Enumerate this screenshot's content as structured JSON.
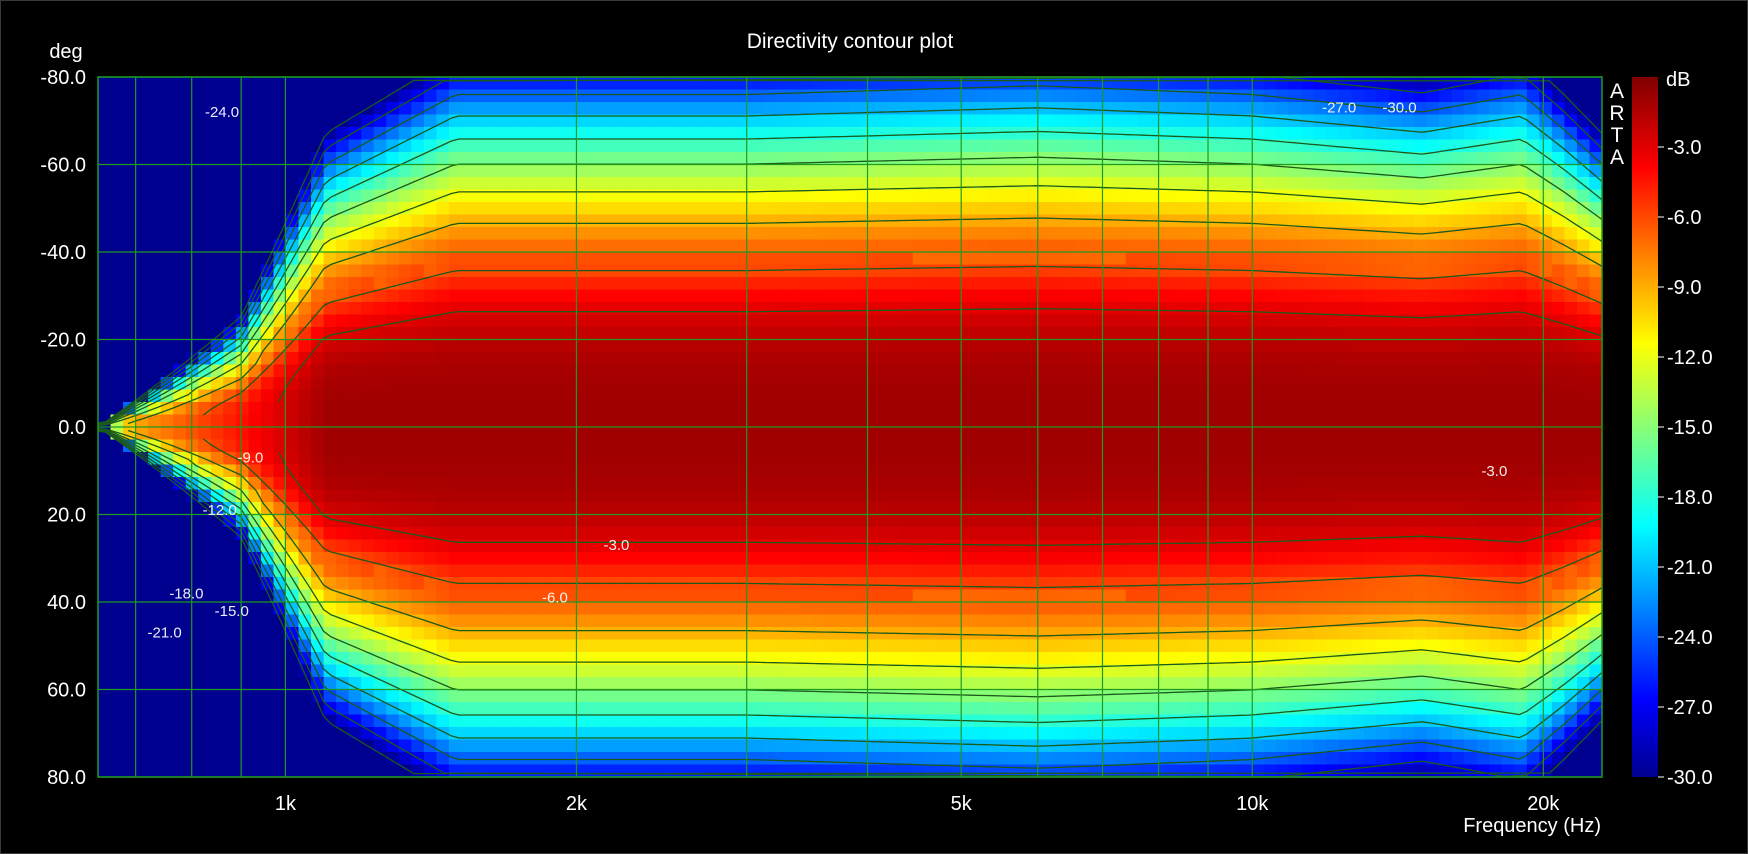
{
  "chart_data": {
    "type": "heatmap",
    "title": "Directivity contour plot",
    "xlabel": "Frequency (Hz)",
    "ylabel": "deg",
    "x_scale": "log",
    "xlim": [
      640,
      23000
    ],
    "ylim": [
      -80,
      80
    ],
    "x_ticks": [
      1000,
      2000,
      5000,
      10000,
      20000
    ],
    "x_tick_labels": [
      "1k",
      "2k",
      "5k",
      "10k",
      "20k"
    ],
    "x_minor_gridlines": [
      700,
      800,
      900,
      3000,
      4000,
      6000,
      7000,
      8000,
      9000
    ],
    "y_ticks": [
      -80,
      -60,
      -40,
      -20,
      0,
      20,
      40,
      60,
      80
    ],
    "y_tick_labels": [
      "-80.0",
      "-60.0",
      "-40.0",
      "-20.0",
      "0.0",
      "20.0",
      "40.0",
      "60.0",
      "80.0"
    ],
    "colorbar": {
      "label": "dB",
      "range": [
        -30,
        0
      ],
      "ticks": [
        -3,
        -6,
        -9,
        -12,
        -15,
        -18,
        -21,
        -24,
        -27,
        -30
      ],
      "tick_labels": [
        "-3.0",
        "-6.0",
        "-9.0",
        "-12.0",
        "-15.0",
        "-18.0",
        "-21.0",
        "-24.0",
        "-27.0",
        "-30.0"
      ],
      "colormap": "jet"
    },
    "contour_levels": [
      -3,
      -6,
      -9,
      -12,
      -15,
      -18,
      -21,
      -24,
      -27,
      -30
    ],
    "contour_labels": [
      {
        "text": "-24.0",
        "x": 860,
        "y": -72
      },
      {
        "text": "-27.0",
        "x": 12300,
        "y": -73
      },
      {
        "text": "-30.0",
        "x": 14200,
        "y": -73
      },
      {
        "text": "-3.0",
        "x": 17800,
        "y": 10
      },
      {
        "text": "-9.0",
        "x": 920,
        "y": 7
      },
      {
        "text": "-12.0",
        "x": 855,
        "y": 19
      },
      {
        "text": "-3.0",
        "x": 2200,
        "y": 27
      },
      {
        "text": "-6.0",
        "x": 1900,
        "y": 39
      },
      {
        "text": "-18.0",
        "x": 790,
        "y": 38
      },
      {
        "text": "-15.0",
        "x": 880,
        "y": 42
      },
      {
        "text": "-21.0",
        "x": 750,
        "y": 47
      }
    ],
    "beamwidth_minus6dB_deg": [
      {
        "x": 640,
        "half_width": 0
      },
      {
        "x": 900,
        "half_width": 12
      },
      {
        "x": 1100,
        "half_width": 30
      },
      {
        "x": 1500,
        "half_width": 38
      },
      {
        "x": 3000,
        "half_width": 38
      },
      {
        "x": 6000,
        "half_width": 39
      },
      {
        "x": 10000,
        "half_width": 38
      },
      {
        "x": 15000,
        "half_width": 36
      },
      {
        "x": 19000,
        "half_width": 38
      },
      {
        "x": 21000,
        "half_width": 34
      },
      {
        "x": 23000,
        "half_width": 30
      }
    ],
    "brand_text": [
      "A",
      "R",
      "T",
      "A"
    ],
    "colors": {
      "background": "#000000",
      "grid": "#1f9a1f",
      "text": "#ffffff",
      "contour": "#1b5a1b"
    },
    "grid": true
  }
}
